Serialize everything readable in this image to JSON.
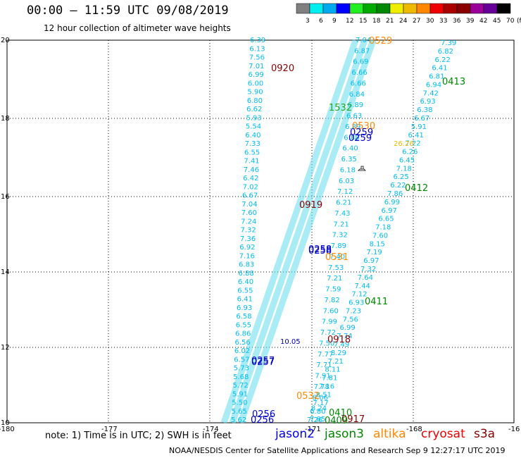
{
  "header": {
    "title": "00:00 – 11:59 UTC 09/08/2019",
    "subtitle": "12 hour collection of altimeter wave heights"
  },
  "colorbar": {
    "colors": [
      "#808080",
      "#00eeee",
      "#00aaee",
      "#0000ff",
      "#22ee22",
      "#00aa00",
      "#008800",
      "#eeee00",
      "#eebb00",
      "#ff8800",
      "#ee0000",
      "#aa0000",
      "#880000",
      "#990099",
      "#660099",
      "#000000"
    ],
    "labels": [
      "3",
      "6",
      "9",
      "12",
      "15",
      "18",
      "21",
      "24",
      "27",
      "30",
      "33",
      "36",
      "39",
      "42",
      "45",
      "70",
      "(ft)"
    ]
  },
  "axes": {
    "x_ticks": [
      "-180",
      "-177",
      "-174",
      "-171",
      "-168",
      "-16"
    ],
    "y_ticks": [
      "20",
      "18",
      "16",
      "14",
      "12",
      "10"
    ]
  },
  "pass_labels": [
    {
      "text": "0529",
      "color": "#ff8800"
    },
    {
      "text": "0920",
      "color": "#880000"
    },
    {
      "text": "0413",
      "color": "#008800"
    },
    {
      "text": "1532",
      "color": "#22aa22"
    },
    {
      "text": "0530",
      "color": "#ff8800"
    },
    {
      "text": "0259",
      "color": "#0000cc"
    },
    {
      "text": "0259",
      "color": "#0000cc"
    },
    {
      "text": "26.26",
      "color": "#eebb00"
    },
    {
      "text": "0412",
      "color": "#008800"
    },
    {
      "text": "0919",
      "color": "#880000"
    },
    {
      "text": "0258",
      "color": "#0000cc"
    },
    {
      "text": "0258",
      "color": "#0000cc"
    },
    {
      "text": "0531",
      "color": "#ff8800"
    },
    {
      "text": "0411",
      "color": "#008800"
    },
    {
      "text": "10.05",
      "color": "#0000aa"
    },
    {
      "text": "0918",
      "color": "#880000"
    },
    {
      "text": "0257",
      "color": "#0000cc"
    },
    {
      "text": "0257",
      "color": "#0000cc"
    },
    {
      "text": "0532",
      "color": "#ff8800"
    },
    {
      "text": "0410",
      "color": "#008800"
    },
    {
      "text": "0917",
      "color": "#880000"
    },
    {
      "text": "0409",
      "color": "#008800"
    },
    {
      "text": "0256",
      "color": "#0000cc"
    },
    {
      "text": "0256",
      "color": "#0000cc"
    }
  ],
  "tracks": [
    {
      "name": "track-a",
      "color": "#00bbee",
      "values": [
        "6.39",
        "6.13",
        "7.56",
        "7.01",
        "6.99",
        "6.00",
        "5.90",
        "6.80",
        "6.62",
        "5.93",
        "5.54",
        "6.40",
        "7.33",
        "6.55",
        "7.41",
        "7.46",
        "6.42",
        "7.02",
        "6.67",
        "7.04",
        "7.60",
        "7.24",
        "7.32",
        "7.36",
        "6.92",
        "7.16",
        "6.83",
        "6.88",
        "6.40",
        "6.55",
        "6.41",
        "6.93",
        "6.58",
        "6.55",
        "6.86",
        "6.56",
        "6.02",
        "6.57",
        "5.73",
        "5.68",
        "5.72",
        "5.91",
        "5.50",
        "5.65",
        "5.62"
      ]
    },
    {
      "name": "track-b",
      "color": "#00bbee",
      "values": [
        "7.39",
        "6.82",
        "6.22",
        "6.41",
        "6.81",
        "6.94",
        "7.42",
        "6.93",
        "6.38",
        "6.67",
        "5.91",
        "6.41",
        "7.22",
        "6.26",
        "6.45",
        "7.18",
        "6.25",
        "6.22",
        "7.86",
        "6.99",
        "6.97",
        "6.65",
        "7.18",
        "7.60",
        "8.15",
        "7.19",
        "6.97",
        "7.32",
        "7.64",
        "7.44",
        "7.12",
        "6.93",
        "7.23",
        "7.56",
        "6.99",
        "7.74",
        "7.49",
        "8.29",
        "7.21",
        "8.11",
        "7.81",
        "7.16",
        "8.51",
        "7.17",
        "6.80",
        "7.26"
      ]
    },
    {
      "name": "track-c",
      "color": "#00bbee",
      "values": [
        "7.04",
        "6.87",
        "6.69",
        "6.66",
        "6.66",
        "6.84",
        "6.89",
        "6.63",
        "6.89",
        "6.88",
        "6.40",
        "6.35",
        "6.18",
        "6.03",
        "7.12",
        "6.21",
        "7.43",
        "7.21",
        "7.32",
        "7.89",
        "7.40",
        "7.53",
        "7.21",
        "7.59",
        "7.82",
        "7.60",
        "7.99",
        "7.72",
        "7.50",
        "7.77",
        "7.71",
        "7.91",
        "7.78",
        "8.06",
        "8.24",
        "7.85"
      ]
    }
  ],
  "note": "note: 1) Time is in UTC; 2) SWH is in feet",
  "satellites": [
    {
      "name": "jason2",
      "color": "#0000ee"
    },
    {
      "name": "jason3",
      "color": "#008800"
    },
    {
      "name": "altika",
      "color": "#ff8800"
    },
    {
      "name": "cryosat",
      "color": "#ee0000"
    },
    {
      "name": "s3a",
      "color": "#880000"
    }
  ],
  "credit": "NOAA/NESDIS Center for Satellite Applications and Research   Sep  9 12:27:17 UTC 2019"
}
